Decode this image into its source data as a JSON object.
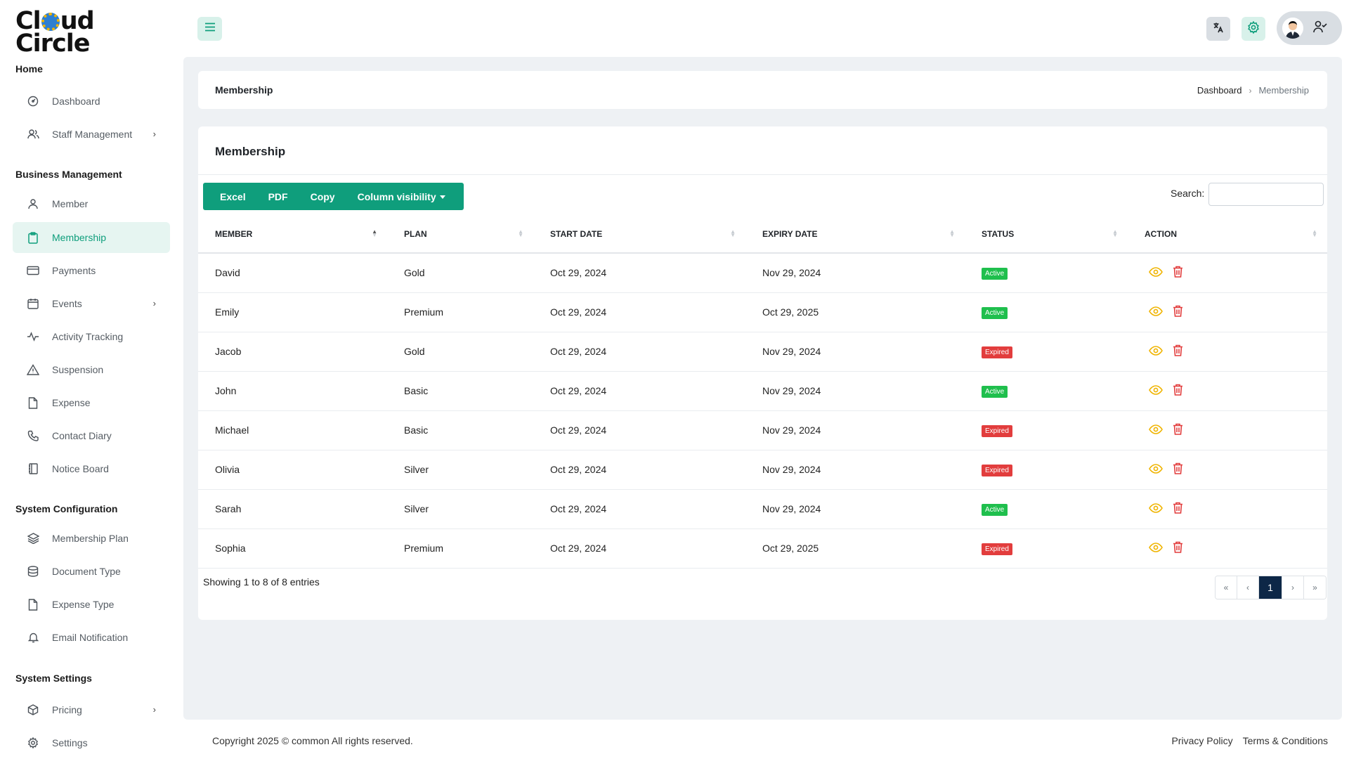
{
  "brand": {
    "logo_line1": "Cl",
    "logo_line1b": "ud",
    "logo_line2": "Circle"
  },
  "sidebar": {
    "home_title": "Home",
    "home_items": [
      {
        "label": "Dashboard",
        "icon": "dashboard-icon"
      },
      {
        "label": "Staff Management",
        "icon": "staff-icon",
        "expandable": true
      }
    ],
    "business_title": "Business Management",
    "business_items": [
      {
        "label": "Member",
        "icon": "user-icon"
      },
      {
        "label": "Membership",
        "icon": "clipboard-icon",
        "active": true
      },
      {
        "label": "Payments",
        "icon": "credit-card-icon"
      },
      {
        "label": "Events",
        "icon": "calendar-icon",
        "expandable": true
      },
      {
        "label": "Activity Tracking",
        "icon": "activity-icon"
      },
      {
        "label": "Suspension",
        "icon": "warning-icon"
      },
      {
        "label": "Expense",
        "icon": "file-icon"
      },
      {
        "label": "Contact Diary",
        "icon": "phone-icon"
      },
      {
        "label": "Notice Board",
        "icon": "notebook-icon"
      }
    ],
    "config_title": "System Configuration",
    "config_items": [
      {
        "label": "Membership Plan",
        "icon": "layers-icon"
      },
      {
        "label": "Document Type",
        "icon": "database-icon"
      },
      {
        "label": "Expense Type",
        "icon": "file-icon"
      },
      {
        "label": "Email Notification",
        "icon": "bell-icon"
      }
    ],
    "settings_title": "System Settings",
    "settings_items": [
      {
        "label": "Pricing",
        "icon": "box-icon",
        "expandable": true
      },
      {
        "label": "Settings",
        "icon": "gear-icon"
      }
    ]
  },
  "header": {
    "menu_icon": "hamburger-icon",
    "translate_icon": "translate-icon",
    "settings_icon": "gear-icon",
    "profile_icon": "user-check-icon"
  },
  "page": {
    "title": "Membership",
    "breadcrumb": [
      "Dashboard",
      "Membership"
    ]
  },
  "table_card": {
    "title": "Membership",
    "buttons": [
      "Excel",
      "PDF",
      "Copy",
      "Column visibility"
    ],
    "search_label": "Search:",
    "search_value": "",
    "columns": [
      "Member",
      "Plan",
      "Start Date",
      "Expiry Date",
      "Status",
      "Action"
    ],
    "rows": [
      {
        "member": "David",
        "plan": "Gold",
        "start": "Oct 29, 2024",
        "expiry": "Nov 29, 2024",
        "status": "Active"
      },
      {
        "member": "Emily",
        "plan": "Premium",
        "start": "Oct 29, 2024",
        "expiry": "Oct 29, 2025",
        "status": "Active"
      },
      {
        "member": "Jacob",
        "plan": "Gold",
        "start": "Oct 29, 2024",
        "expiry": "Nov 29, 2024",
        "status": "Expired"
      },
      {
        "member": "John",
        "plan": "Basic",
        "start": "Oct 29, 2024",
        "expiry": "Nov 29, 2024",
        "status": "Active"
      },
      {
        "member": "Michael",
        "plan": "Basic",
        "start": "Oct 29, 2024",
        "expiry": "Nov 29, 2024",
        "status": "Expired"
      },
      {
        "member": "Olivia",
        "plan": "Silver",
        "start": "Oct 29, 2024",
        "expiry": "Nov 29, 2024",
        "status": "Expired"
      },
      {
        "member": "Sarah",
        "plan": "Silver",
        "start": "Oct 29, 2024",
        "expiry": "Nov 29, 2024",
        "status": "Active"
      },
      {
        "member": "Sophia",
        "plan": "Premium",
        "start": "Oct 29, 2024",
        "expiry": "Oct 29, 2025",
        "status": "Expired"
      }
    ],
    "showing": "Showing 1 to 8 of 8 entries",
    "pagination": [
      "«",
      "‹",
      "1",
      "›",
      "»"
    ],
    "current_page": "1"
  },
  "footer": {
    "copyright": "Copyright 2025 © common All rights reserved.",
    "links": [
      "Privacy Policy",
      "Terms & Conditions"
    ]
  },
  "colors": {
    "accent": "#0f9e7c",
    "active_badge": "#1fbf4d",
    "expired_badge": "#e23d3d",
    "view_icon": "#f0b400",
    "delete_icon": "#e23d3d",
    "pager_current": "#0d2747"
  }
}
